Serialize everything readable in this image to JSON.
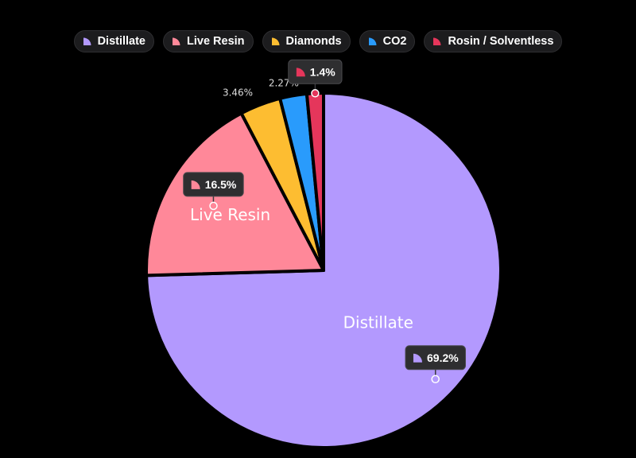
{
  "chart_data": {
    "type": "pie",
    "categories": [
      "Distillate",
      "Live Resin",
      "Diamonds",
      "CO2",
      "Rosin / Solventless"
    ],
    "values": [
      69.2,
      16.5,
      3.46,
      2.27,
      1.4
    ],
    "colors": [
      "#b399fe",
      "#ff8899",
      "#fdbd31",
      "#299bfc",
      "#e5365b"
    ],
    "value_labels": [
      "69.2%",
      "16.5%",
      "3.46%",
      "2.27%",
      "1.4%"
    ],
    "slice_labels": [
      "Distillate",
      "Live Resin",
      "",
      "",
      ""
    ],
    "legend_placement": "top-center",
    "tooltips_shown_for": [
      "Distillate",
      "Live Resin",
      "Rosin / Solventless"
    ]
  }
}
